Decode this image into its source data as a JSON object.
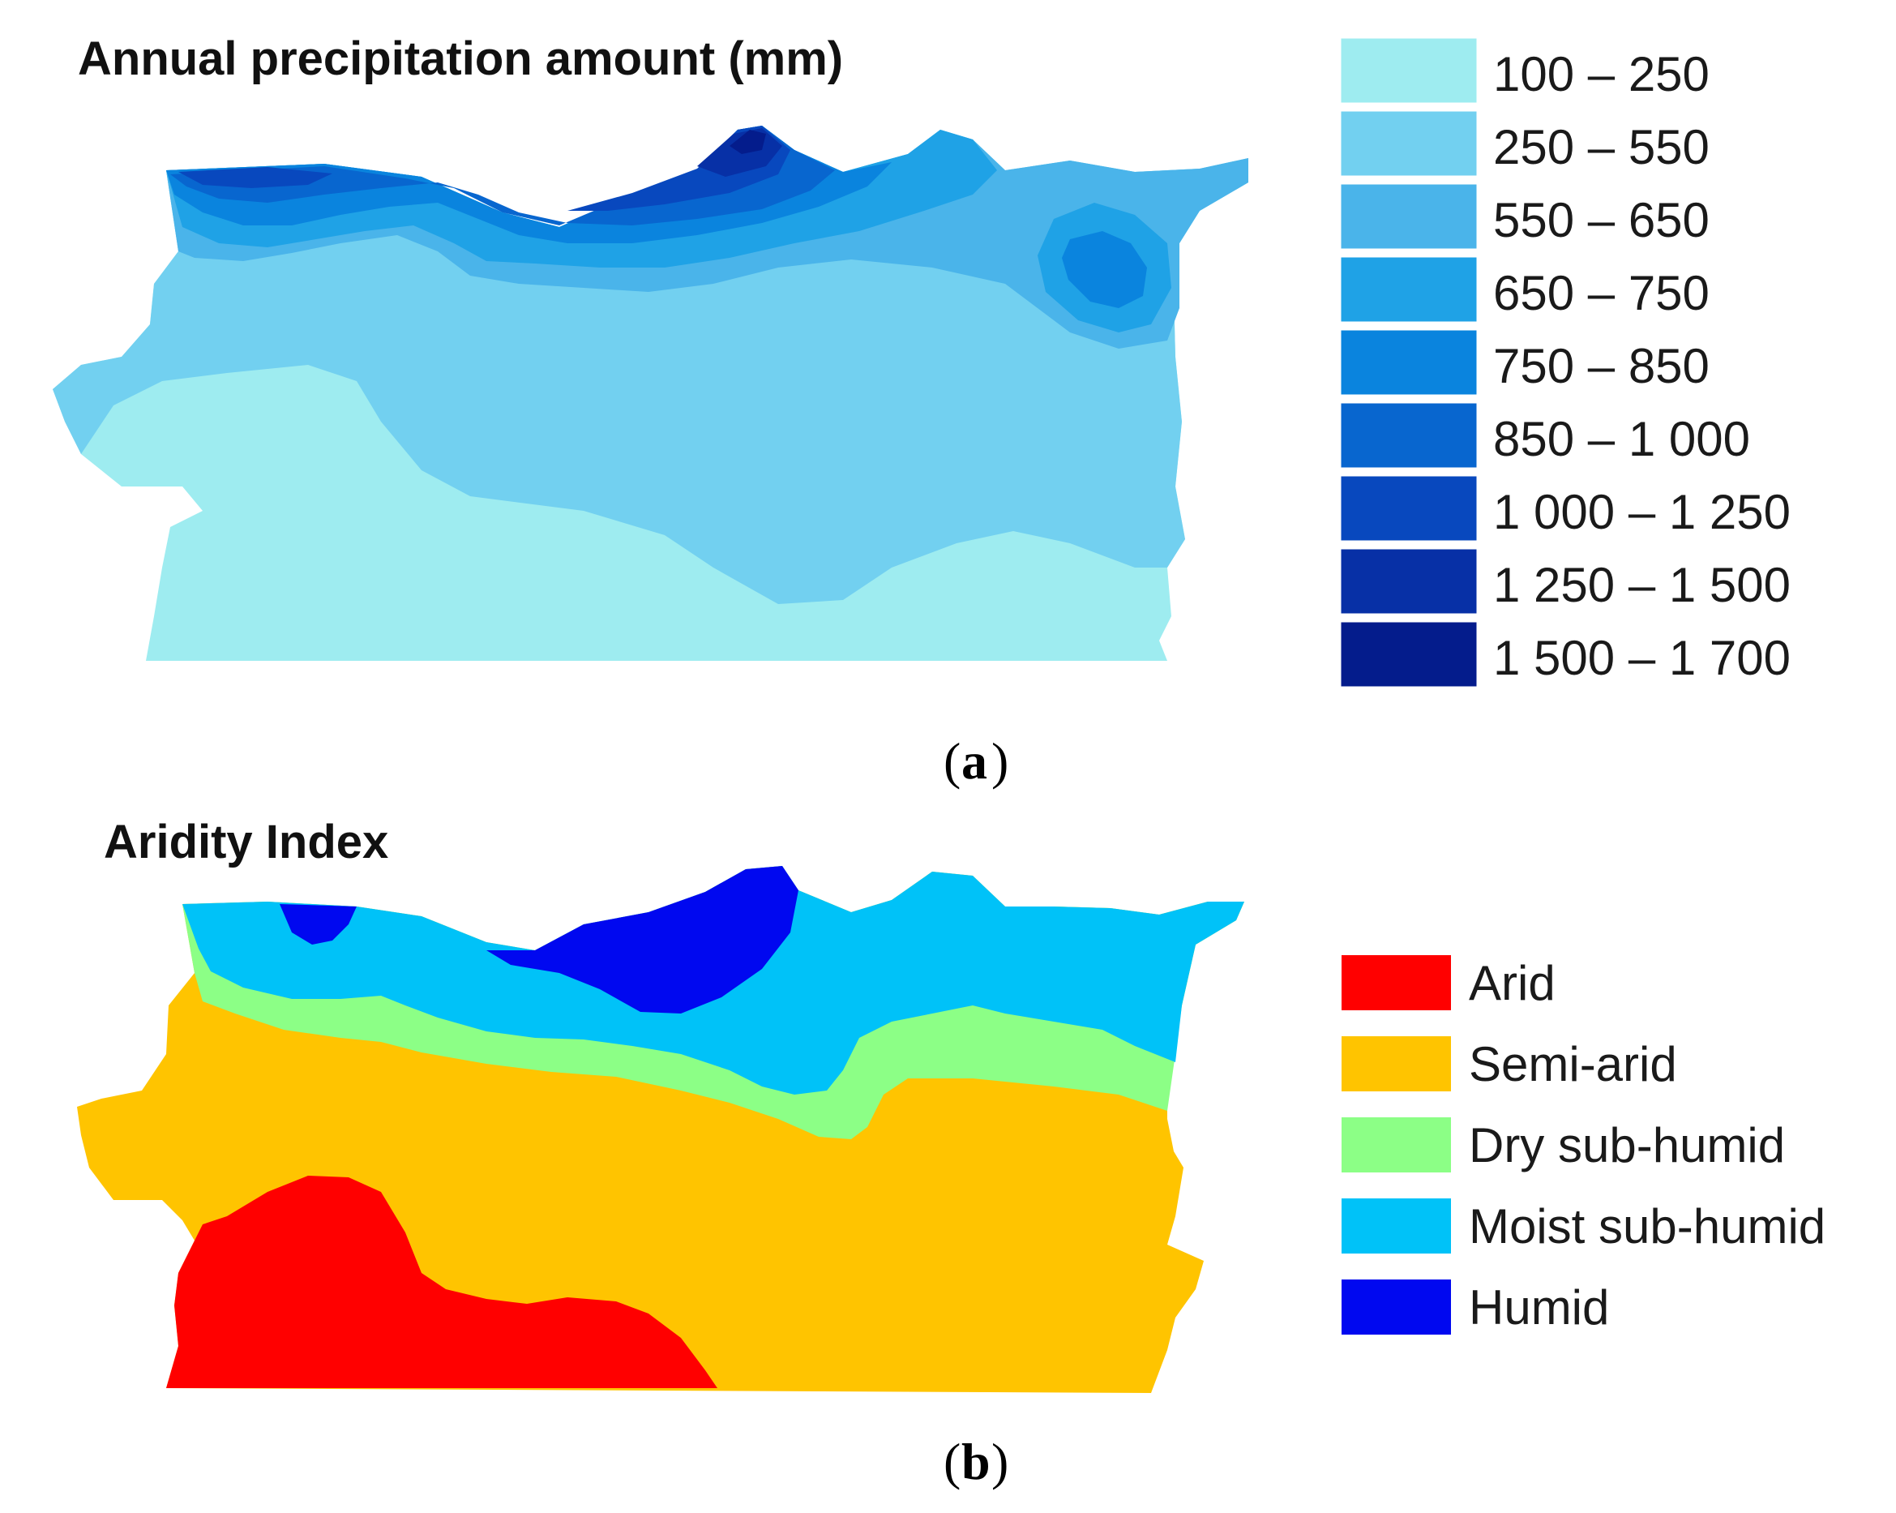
{
  "panel_a": {
    "title": "Annual precipitation amount (mm)",
    "caption_letter": "a",
    "legend": [
      {
        "label": "100 – 250",
        "color": "#9eecf0"
      },
      {
        "label": "250 – 550",
        "color": "#72d0f0"
      },
      {
        "label": "550 – 650",
        "color": "#4ab4ea"
      },
      {
        "label": "650 – 750",
        "color": "#1fa2e6"
      },
      {
        "label": "750 – 850",
        "color": "#0a84de"
      },
      {
        "label": "850 – 1 000",
        "color": "#0866cf"
      },
      {
        "label": "1 000 – 1 250",
        "color": "#0848be"
      },
      {
        "label": "1 250 – 1 500",
        "color": "#0730a6"
      },
      {
        "label": "1 500 – 1 700",
        "color": "#041c8c"
      }
    ]
  },
  "panel_b": {
    "title": "Aridity Index",
    "caption_letter": "b",
    "legend": [
      {
        "label": "Arid",
        "color": "#ff0000"
      },
      {
        "label": "Semi-arid",
        "color": "#ffc400"
      },
      {
        "label": "Dry sub-humid",
        "color": "#8cff86"
      },
      {
        "label": "Moist sub-humid",
        "color": "#00c2f8"
      },
      {
        "label": "Humid",
        "color": "#0008f0"
      }
    ]
  }
}
